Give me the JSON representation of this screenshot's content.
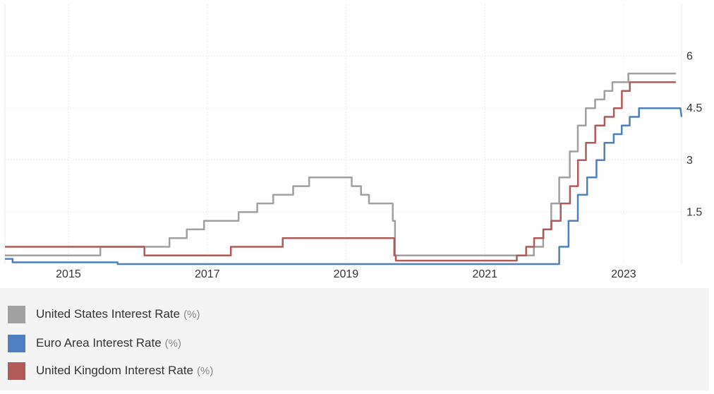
{
  "chart_data": {
    "type": "line",
    "title": "",
    "xlabel": "",
    "ylabel": "",
    "x_ticks": [
      "2015",
      "2017",
      "2019",
      "2021",
      "2023"
    ],
    "y_ticks": [
      "1.5",
      "3",
      "4.5",
      "6"
    ],
    "xlim": [
      "2014-08-01",
      "2024-05-01"
    ],
    "ylim": [
      0,
      7.5
    ],
    "grid": true,
    "legend_position": "bottom",
    "series": [
      {
        "name": "United States Interest Rate",
        "unit": "(%)",
        "color": "#a0a0a0",
        "points": [
          [
            "2014-08-01",
            0.25
          ],
          [
            "2015-12-16",
            0.25
          ],
          [
            "2015-12-16",
            0.5
          ],
          [
            "2016-12-14",
            0.5
          ],
          [
            "2016-12-14",
            0.75
          ],
          [
            "2017-03-15",
            0.75
          ],
          [
            "2017-03-15",
            1.0
          ],
          [
            "2017-06-14",
            1.0
          ],
          [
            "2017-06-14",
            1.25
          ],
          [
            "2017-12-13",
            1.25
          ],
          [
            "2017-12-13",
            1.5
          ],
          [
            "2018-03-21",
            1.5
          ],
          [
            "2018-03-21",
            1.75
          ],
          [
            "2018-06-13",
            1.75
          ],
          [
            "2018-06-13",
            2.0
          ],
          [
            "2018-09-26",
            2.0
          ],
          [
            "2018-09-26",
            2.25
          ],
          [
            "2018-12-19",
            2.25
          ],
          [
            "2018-12-19",
            2.5
          ],
          [
            "2019-07-31",
            2.5
          ],
          [
            "2019-07-31",
            2.25
          ],
          [
            "2019-09-18",
            2.25
          ],
          [
            "2019-09-18",
            2.0
          ],
          [
            "2019-10-30",
            2.0
          ],
          [
            "2019-10-30",
            1.75
          ],
          [
            "2020-03-03",
            1.75
          ],
          [
            "2020-03-03",
            1.25
          ],
          [
            "2020-03-15",
            1.25
          ],
          [
            "2020-03-15",
            0.25
          ],
          [
            "2022-03-16",
            0.25
          ],
          [
            "2022-03-16",
            0.5
          ],
          [
            "2022-05-04",
            0.5
          ],
          [
            "2022-05-04",
            1.0
          ],
          [
            "2022-06-15",
            1.0
          ],
          [
            "2022-06-15",
            1.75
          ],
          [
            "2022-07-27",
            1.75
          ],
          [
            "2022-07-27",
            2.5
          ],
          [
            "2022-09-21",
            2.5
          ],
          [
            "2022-09-21",
            3.25
          ],
          [
            "2022-11-02",
            3.25
          ],
          [
            "2022-11-02",
            4.0
          ],
          [
            "2022-12-14",
            4.0
          ],
          [
            "2022-12-14",
            4.5
          ],
          [
            "2023-02-01",
            4.5
          ],
          [
            "2023-02-01",
            4.75
          ],
          [
            "2023-03-22",
            4.75
          ],
          [
            "2023-03-22",
            5.0
          ],
          [
            "2023-05-03",
            5.0
          ],
          [
            "2023-05-03",
            5.25
          ],
          [
            "2023-07-26",
            5.25
          ],
          [
            "2023-07-26",
            5.5
          ],
          [
            "2024-04-01",
            5.5
          ]
        ]
      },
      {
        "name": "Euro Area Interest Rate",
        "unit": "(%)",
        "color": "#4f7fbf",
        "points": [
          [
            "2014-08-01",
            0.15
          ],
          [
            "2014-09-10",
            0.15
          ],
          [
            "2014-09-10",
            0.05
          ],
          [
            "2016-03-16",
            0.05
          ],
          [
            "2016-03-16",
            0.0
          ],
          [
            "2022-07-27",
            0.0
          ],
          [
            "2022-07-27",
            0.5
          ],
          [
            "2022-09-14",
            0.5
          ],
          [
            "2022-09-14",
            1.25
          ],
          [
            "2022-11-02",
            1.25
          ],
          [
            "2022-11-02",
            2.0
          ],
          [
            "2022-12-21",
            2.0
          ],
          [
            "2022-12-21",
            2.5
          ],
          [
            "2023-02-08",
            2.5
          ],
          [
            "2023-02-08",
            3.0
          ],
          [
            "2023-03-22",
            3.0
          ],
          [
            "2023-03-22",
            3.5
          ],
          [
            "2023-05-10",
            3.5
          ],
          [
            "2023-05-10",
            3.75
          ],
          [
            "2023-06-21",
            3.75
          ],
          [
            "2023-06-21",
            4.0
          ],
          [
            "2023-08-02",
            4.0
          ],
          [
            "2023-08-02",
            4.25
          ],
          [
            "2023-09-20",
            4.25
          ],
          [
            "2023-09-20",
            4.5
          ],
          [
            "2024-04-25",
            4.5
          ],
          [
            "2024-05-01",
            4.25
          ]
        ]
      },
      {
        "name": "United Kingdom Interest Rate",
        "unit": "(%)",
        "color": "#b05a5a",
        "points": [
          [
            "2014-08-01",
            0.5
          ],
          [
            "2016-08-04",
            0.5
          ],
          [
            "2016-08-04",
            0.25
          ],
          [
            "2017-11-02",
            0.25
          ],
          [
            "2017-11-02",
            0.5
          ],
          [
            "2018-08-02",
            0.5
          ],
          [
            "2018-08-02",
            0.75
          ],
          [
            "2020-03-11",
            0.75
          ],
          [
            "2020-03-11",
            0.25
          ],
          [
            "2020-03-19",
            0.25
          ],
          [
            "2020-03-19",
            0.1
          ],
          [
            "2021-12-16",
            0.1
          ],
          [
            "2021-12-16",
            0.25
          ],
          [
            "2022-02-03",
            0.25
          ],
          [
            "2022-02-03",
            0.5
          ],
          [
            "2022-03-17",
            0.5
          ],
          [
            "2022-03-17",
            0.75
          ],
          [
            "2022-05-05",
            0.75
          ],
          [
            "2022-05-05",
            1.0
          ],
          [
            "2022-06-16",
            1.0
          ],
          [
            "2022-06-16",
            1.25
          ],
          [
            "2022-08-04",
            1.25
          ],
          [
            "2022-08-04",
            1.75
          ],
          [
            "2022-09-22",
            1.75
          ],
          [
            "2022-09-22",
            2.25
          ],
          [
            "2022-11-03",
            2.25
          ],
          [
            "2022-11-03",
            3.0
          ],
          [
            "2022-12-15",
            3.0
          ],
          [
            "2022-12-15",
            3.5
          ],
          [
            "2023-02-02",
            3.5
          ],
          [
            "2023-02-02",
            4.0
          ],
          [
            "2023-03-23",
            4.0
          ],
          [
            "2023-03-23",
            4.25
          ],
          [
            "2023-05-11",
            4.25
          ],
          [
            "2023-05-11",
            4.5
          ],
          [
            "2023-06-22",
            4.5
          ],
          [
            "2023-06-22",
            5.0
          ],
          [
            "2023-08-03",
            5.0
          ],
          [
            "2023-08-03",
            5.25
          ],
          [
            "2024-04-01",
            5.25
          ]
        ]
      }
    ]
  }
}
